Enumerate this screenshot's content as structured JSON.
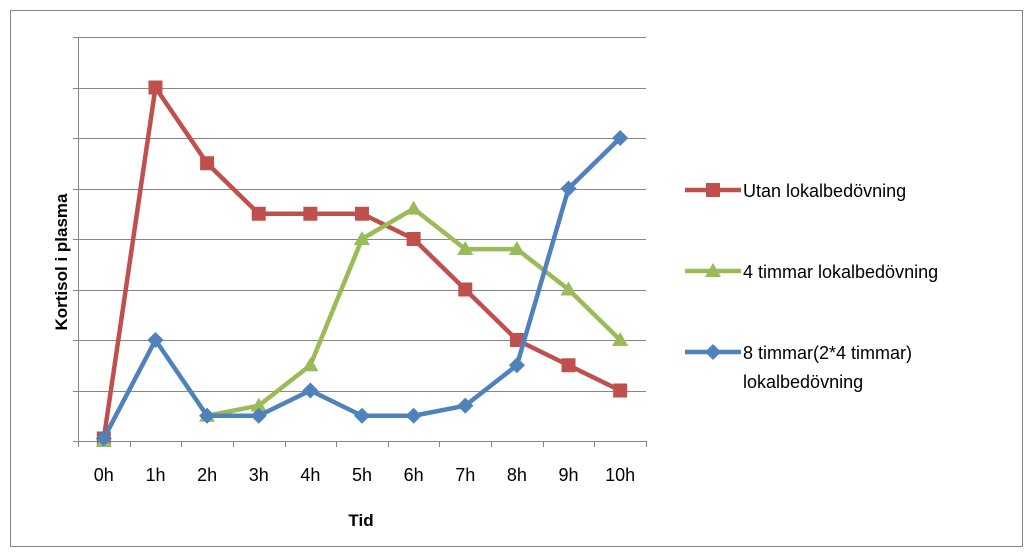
{
  "chart_data": {
    "type": "line",
    "title": "",
    "xlabel": "Tid",
    "ylabel": "Kortisol i plasma",
    "categories": [
      "0h",
      "1h",
      "2h",
      "3h",
      "4h",
      "5h",
      "6h",
      "7h",
      "8h",
      "9h",
      "10h"
    ],
    "ylim": [
      0,
      8
    ],
    "grid": true,
    "y_tick_labels_shown": false,
    "legend_position": "right",
    "series": [
      {
        "name": "Utan lokalbedövning",
        "color": "#C0504D",
        "marker": "square",
        "values": [
          0.05,
          7.0,
          5.5,
          4.5,
          4.5,
          4.5,
          4.0,
          3.0,
          2.0,
          1.5,
          1.0
        ]
      },
      {
        "name": "4 timmar lokalbedövning",
        "color": "#9BBB59",
        "marker": "triangle",
        "values": [
          0.0,
          null,
          0.5,
          0.7,
          1.5,
          4.0,
          4.6,
          3.8,
          3.8,
          3.0,
          2.0
        ]
      },
      {
        "name": "8 timmar(2*4 timmar) lokalbedövning",
        "name_lines": [
          "8 timmar(2*4 timmar)",
          "lokalbedövning"
        ],
        "color": "#4F81BD",
        "marker": "diamond",
        "values": [
          0.05,
          2.0,
          0.5,
          0.5,
          1.0,
          0.5,
          0.5,
          0.7,
          1.5,
          5.0,
          6.0
        ]
      }
    ]
  }
}
